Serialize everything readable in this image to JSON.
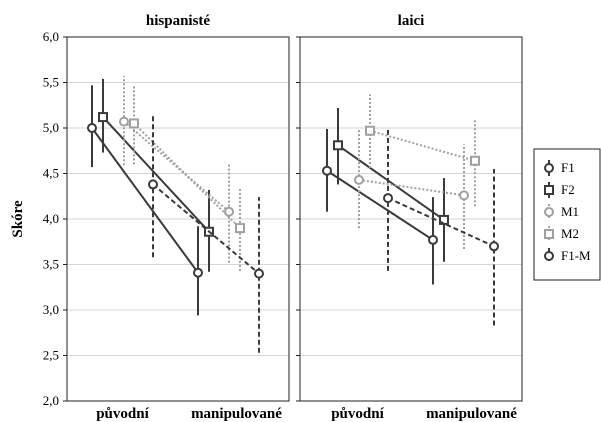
{
  "chart_data": {
    "type": "line",
    "ylabel": "Skóre",
    "ylim": [
      2.0,
      6.0
    ],
    "yticks": [
      "2,0",
      "2,5",
      "3,0",
      "3,5",
      "4,0",
      "4,5",
      "5,0",
      "5,5",
      "6,0"
    ],
    "grid": "horizontal",
    "legend_position": "right",
    "categories": [
      "původní",
      "manipulované"
    ],
    "series_styles": [
      {
        "name": "F1",
        "color": "#3a3a3a",
        "marker": "circle",
        "dash": "solid"
      },
      {
        "name": "F2",
        "color": "#3a3a3a",
        "marker": "square",
        "dash": "solid"
      },
      {
        "name": "M1",
        "color": "#a0a0a0",
        "marker": "circle",
        "dash": "dotted"
      },
      {
        "name": "M2",
        "color": "#a0a0a0",
        "marker": "square",
        "dash": "dotted"
      },
      {
        "name": "F1-M",
        "color": "#3a3a3a",
        "marker": "circle",
        "dash": "dashed"
      }
    ],
    "panels": [
      {
        "title": "hispanisté",
        "series": [
          {
            "name": "F1",
            "values": [
              5.0,
              3.41
            ],
            "ci_low": [
              4.57,
              2.94
            ],
            "ci_high": [
              5.47,
              3.92
            ]
          },
          {
            "name": "F2",
            "values": [
              5.12,
              3.86
            ],
            "ci_low": [
              4.73,
              3.42
            ],
            "ci_high": [
              5.54,
              4.32
            ]
          },
          {
            "name": "M1",
            "values": [
              5.07,
              4.08
            ],
            "ci_low": [
              4.59,
              3.52
            ],
            "ci_high": [
              5.57,
              4.62
            ]
          },
          {
            "name": "M2",
            "values": [
              5.05,
              3.9
            ],
            "ci_low": [
              4.6,
              3.43
            ],
            "ci_high": [
              5.47,
              4.35
            ]
          },
          {
            "name": "F1-M",
            "values": [
              4.38,
              3.4
            ],
            "ci_low": [
              3.58,
              2.53
            ],
            "ci_high": [
              5.14,
              4.24
            ]
          }
        ]
      },
      {
        "title": "laici",
        "series": [
          {
            "name": "F1",
            "values": [
              4.53,
              3.77
            ],
            "ci_low": [
              4.08,
              3.28
            ],
            "ci_high": [
              4.99,
              4.24
            ]
          },
          {
            "name": "F2",
            "values": [
              4.81,
              3.99
            ],
            "ci_low": [
              4.38,
              3.53
            ],
            "ci_high": [
              5.22,
              4.45
            ]
          },
          {
            "name": "M1",
            "values": [
              4.43,
              4.26
            ],
            "ci_low": [
              3.9,
              3.67
            ],
            "ci_high": [
              4.98,
              4.82
            ]
          },
          {
            "name": "M2",
            "values": [
              4.97,
              4.64
            ],
            "ci_low": [
              4.56,
              4.14
            ],
            "ci_high": [
              5.37,
              5.1
            ]
          },
          {
            "name": "F1-M",
            "values": [
              4.23,
              3.7
            ],
            "ci_low": [
              3.43,
              2.83
            ],
            "ci_high": [
              5.0,
              4.55
            ]
          }
        ]
      }
    ]
  }
}
